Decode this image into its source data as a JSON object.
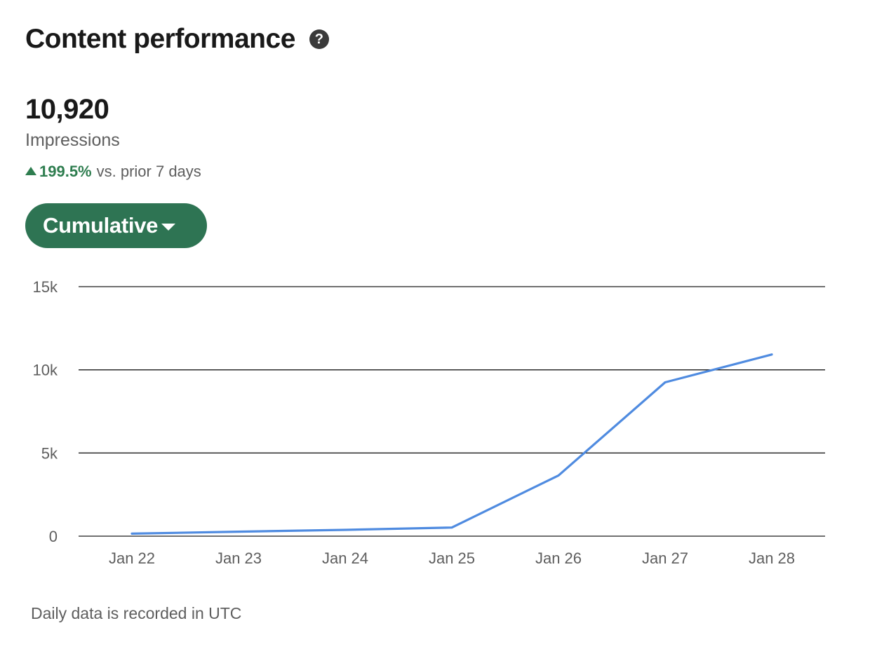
{
  "header": {
    "title": "Content performance",
    "help_icon": "question-circle-icon"
  },
  "metric": {
    "value": "10,920",
    "label": "Impressions",
    "change_value": "199.5%",
    "change_text": "vs. prior 7 days",
    "change_direction": "up",
    "change_color": "#2e7d4f"
  },
  "dropdown": {
    "label": "Cumulative",
    "icon": "caret-down-icon",
    "color": "#2e7453"
  },
  "chart_data": {
    "type": "line",
    "categories": [
      "Jan 22",
      "Jan 23",
      "Jan 24",
      "Jan 25",
      "Jan 26",
      "Jan 27",
      "Jan 28"
    ],
    "series": [
      {
        "values": [
          150,
          270,
          380,
          520,
          3650,
          9250,
          10920
        ],
        "color": "#4f8be0"
      }
    ],
    "y_ticks": [
      0,
      5000,
      10000,
      15000
    ],
    "y_tick_labels": [
      "0",
      "5k",
      "10k",
      "15k"
    ],
    "ylim": [
      0,
      15000
    ],
    "grid": true,
    "legend": "none"
  },
  "footnote": "Daily data is recorded in UTC"
}
